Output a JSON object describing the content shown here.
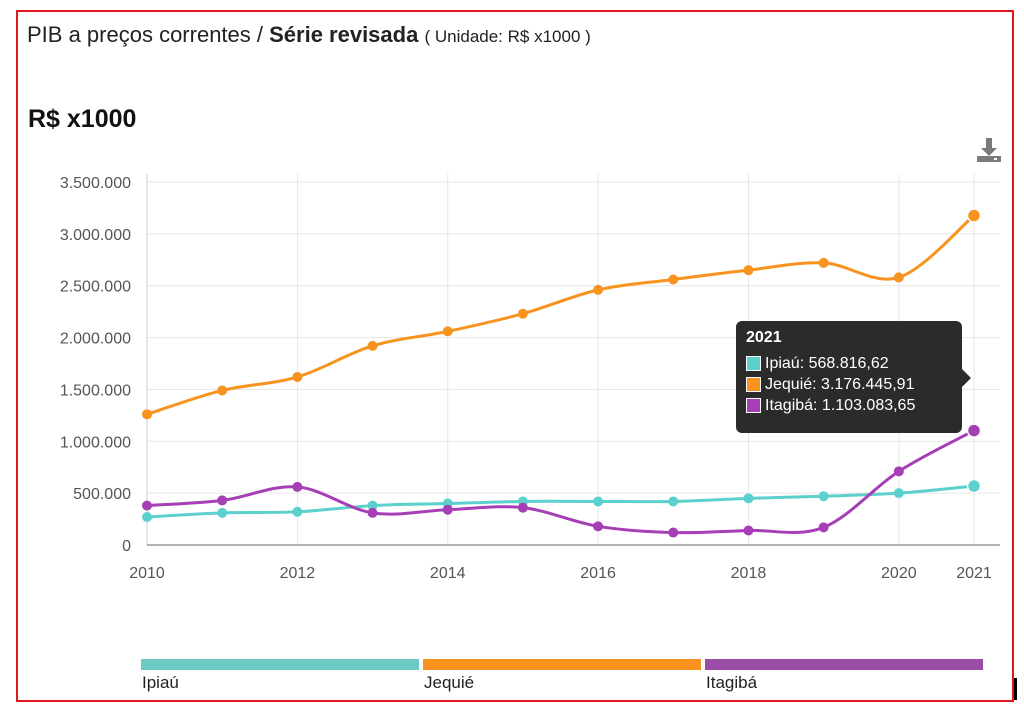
{
  "header": {
    "title_prefix": "PIB a preços correntes / ",
    "title_bold": "Série revisada",
    "title_unit": "( Unidade: R$ x1000 )",
    "unit_heading": "R$ x1000"
  },
  "toolbar": {
    "download_icon": "download-icon"
  },
  "tooltip": {
    "title": "2021",
    "rows": [
      {
        "text": "Ipiaú: 568.816,62",
        "color": "#5bd0cc"
      },
      {
        "text": "Jequié: 3.176.445,91",
        "color": "#f7931e"
      },
      {
        "text": "Itagibá: 1.103.083,65",
        "color": "#a63eb5"
      }
    ]
  },
  "legend": {
    "items": [
      {
        "label": "Ipiaú",
        "color": "#6cc9c4"
      },
      {
        "label": "Jequié",
        "color": "#f7931e"
      },
      {
        "label": "Itagibá",
        "color": "#9b4ea8"
      }
    ]
  },
  "chart_data": {
    "type": "line",
    "title": "PIB a preços correntes / Série revisada",
    "ylabel": "R$ x1000",
    "x": [
      2010,
      2011,
      2012,
      2013,
      2014,
      2015,
      2016,
      2017,
      2018,
      2019,
      2020,
      2021
    ],
    "x_ticks": [
      "2010",
      "2012",
      "2014",
      "2016",
      "2018",
      "2020",
      "2021"
    ],
    "y_ticks": [
      "0",
      "500.000",
      "1.000.000",
      "1.500.000",
      "2.000.000",
      "2.500.000",
      "3.000.000",
      "3.500.000"
    ],
    "ylim": [
      0,
      3500000
    ],
    "grid": true,
    "legend_position": "bottom",
    "series": [
      {
        "name": "Ipiaú",
        "color": "#5bd0cc",
        "values": [
          270000,
          310000,
          320000,
          380000,
          400000,
          420000,
          420000,
          420000,
          450000,
          470000,
          500000,
          568816.62
        ]
      },
      {
        "name": "Jequié",
        "color": "#f7931e",
        "values": [
          1260000,
          1490000,
          1620000,
          1920000,
          2060000,
          2230000,
          2460000,
          2560000,
          2650000,
          2720000,
          2580000,
          3176445.91
        ]
      },
      {
        "name": "Itagibá",
        "color": "#a63eb5",
        "values": [
          380000,
          430000,
          560000,
          310000,
          340000,
          360000,
          180000,
          120000,
          140000,
          170000,
          710000,
          1103083.65
        ]
      }
    ]
  }
}
